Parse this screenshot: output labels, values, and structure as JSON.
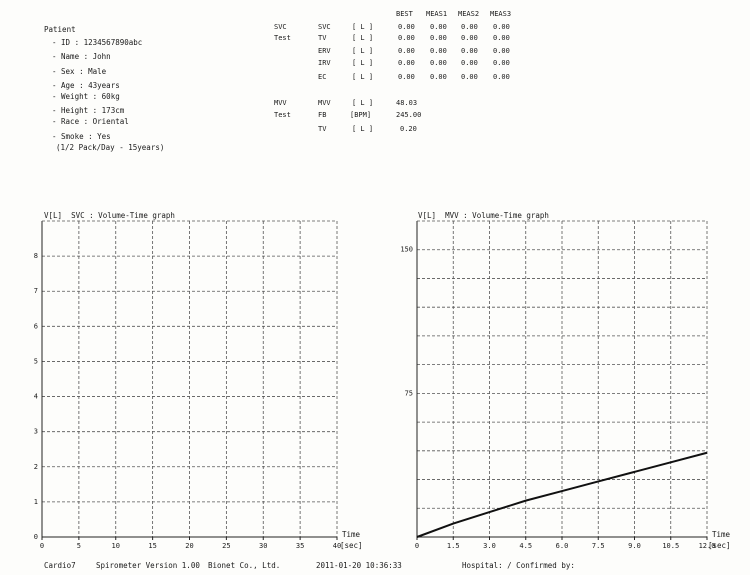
{
  "patient": {
    "header": "Patient",
    "fields": [
      "- ID : 1234567890abc",
      "- Name : John",
      "- Sex : Male",
      "- Age : 43years",
      "- Weight : 60kg",
      "- Height : 173cm",
      "- Race : Oriental",
      "- Smoke : Yes",
      "(1/2 Pack/Day - 15years)"
    ]
  },
  "results": {
    "columns": [
      "BEST",
      "MEAS1",
      "MEAS2",
      "MEAS3"
    ],
    "svc": {
      "group_label_1": "SVC",
      "group_label_2": "Test",
      "rows": [
        {
          "param": "SVC",
          "unit": "[ L ]",
          "values": [
            "0.00",
            "0.00",
            "0.00",
            "0.00"
          ]
        },
        {
          "param": "TV",
          "unit": "[ L ]",
          "values": [
            "0.00",
            "0.00",
            "0.00",
            "0.00"
          ]
        },
        {
          "param": "ERV",
          "unit": "[ L ]",
          "values": [
            "0.00",
            "0.00",
            "0.00",
            "0.00"
          ]
        },
        {
          "param": "IRV",
          "unit": "[ L ]",
          "values": [
            "0.00",
            "0.00",
            "0.00",
            "0.00"
          ]
        },
        {
          "param": "EC",
          "unit": "[ L ]",
          "values": [
            "0.00",
            "0.00",
            "0.00",
            "0.00"
          ]
        }
      ]
    },
    "mvv": {
      "group_label_1": "MVV",
      "group_label_2": "Test",
      "rows": [
        {
          "param": "MVV",
          "unit": "[ L ]",
          "value": "48.03"
        },
        {
          "param": "FB",
          "unit": "[BPM]",
          "value": "245.00"
        },
        {
          "param": "TV",
          "unit": "[ L ]",
          "value": "0.20"
        }
      ]
    }
  },
  "svc_graph": {
    "title": "V[L]  SVC : Volume-Time graph",
    "time_label": "Time",
    "time_unit": "[sec]"
  },
  "mvv_graph": {
    "title": "V[L]  MVV : Volume-Time graph",
    "time_label": "Time",
    "time_unit": "[sec]"
  },
  "chart_data": [
    {
      "type": "line",
      "title": "SVC : Volume-Time graph",
      "ylabel": "V[L]",
      "xlabel": "Time [sec]",
      "xlim": [
        0,
        40
      ],
      "ylim": [
        0,
        9
      ],
      "x_ticks": [
        "0",
        "5",
        "10",
        "15",
        "20",
        "25",
        "30",
        "35",
        "40"
      ],
      "y_ticks": [
        "0",
        "1",
        "2",
        "3",
        "4",
        "5",
        "6",
        "7",
        "8"
      ],
      "grid": true,
      "series": []
    },
    {
      "type": "line",
      "title": "MVV : Volume-Time graph",
      "ylabel": "V[L]",
      "xlabel": "Time [sec]",
      "xlim": [
        0,
        12
      ],
      "ylim": [
        0,
        165
      ],
      "x_ticks": [
        "0",
        "1.5",
        "3.0",
        "4.5",
        "6.0",
        "7.5",
        "9.0",
        "10.5",
        "12.0"
      ],
      "y_ticks": [
        "75",
        "150"
      ],
      "grid": true,
      "series": [
        {
          "x": [
            0,
            1.5,
            3.0,
            4.5,
            6.0,
            7.5,
            9.0,
            10.5,
            12.0
          ],
          "y": [
            0,
            7,
            13,
            19,
            24,
            29,
            34,
            39,
            44
          ]
        }
      ]
    }
  ],
  "footer": {
    "device": "Cardio7",
    "software": "Spirometer Version 1.00",
    "company": "Bionet Co., Ltd.",
    "datetime": "2011-01-20 10:36:33",
    "hospital": "Hospital: / Confirmed by:"
  }
}
